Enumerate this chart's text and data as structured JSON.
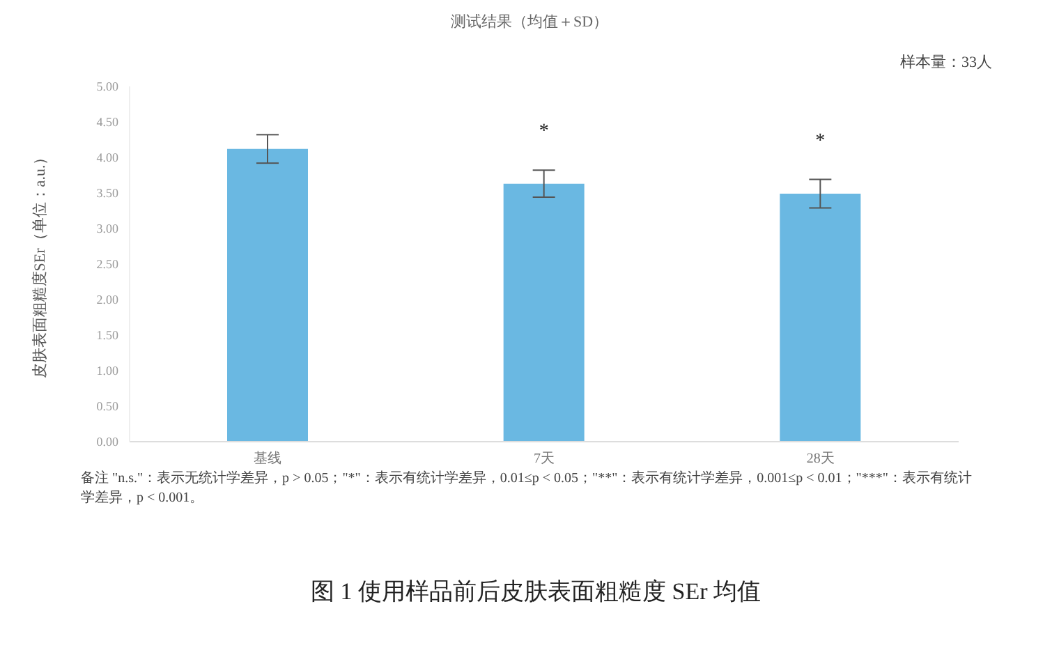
{
  "chart_data": {
    "type": "bar",
    "title": "测试结果（均值＋SD）",
    "subtitle": "样本量：33人",
    "ylabel": "皮肤表面粗糙度SEr（单位：a.u.）",
    "categories": [
      "基线",
      "7天",
      "28天"
    ],
    "values": [
      4.12,
      3.63,
      3.49
    ],
    "errors": [
      0.2,
      0.19,
      0.2
    ],
    "color": "#6ab8e2",
    "ylim": [
      0,
      5
    ],
    "yticks": [
      {
        "value": 0,
        "label": "0.00"
      },
      {
        "value": 0.5,
        "label": "0.50"
      },
      {
        "value": 1,
        "label": "1.00"
      },
      {
        "value": 1.5,
        "label": "1.50"
      },
      {
        "value": 2,
        "label": "2.00"
      },
      {
        "value": 2.5,
        "label": "2.50"
      },
      {
        "value": 3,
        "label": "3.00"
      },
      {
        "value": 3.5,
        "label": "3.50"
      },
      {
        "value": 4,
        "label": "4.00"
      },
      {
        "value": 4.5,
        "label": "4.50"
      },
      {
        "value": 5,
        "label": "5.00"
      }
    ],
    "value_labels": [
      null,
      "*",
      "*"
    ],
    "annotations": [
      "备注 \"n.s.\"：表示无统计学差异，p > 0.05；\"*\"：表示有统计学差异，0.01≤p < 0.05；\"**\"：表示有统计学差异，0.001≤p < 0.01；\"***\"：表示有统计学差异，p < 0.001。",
      "图 1  使用样品前后皮肤表面粗糙度 SEr 均值"
    ]
  }
}
